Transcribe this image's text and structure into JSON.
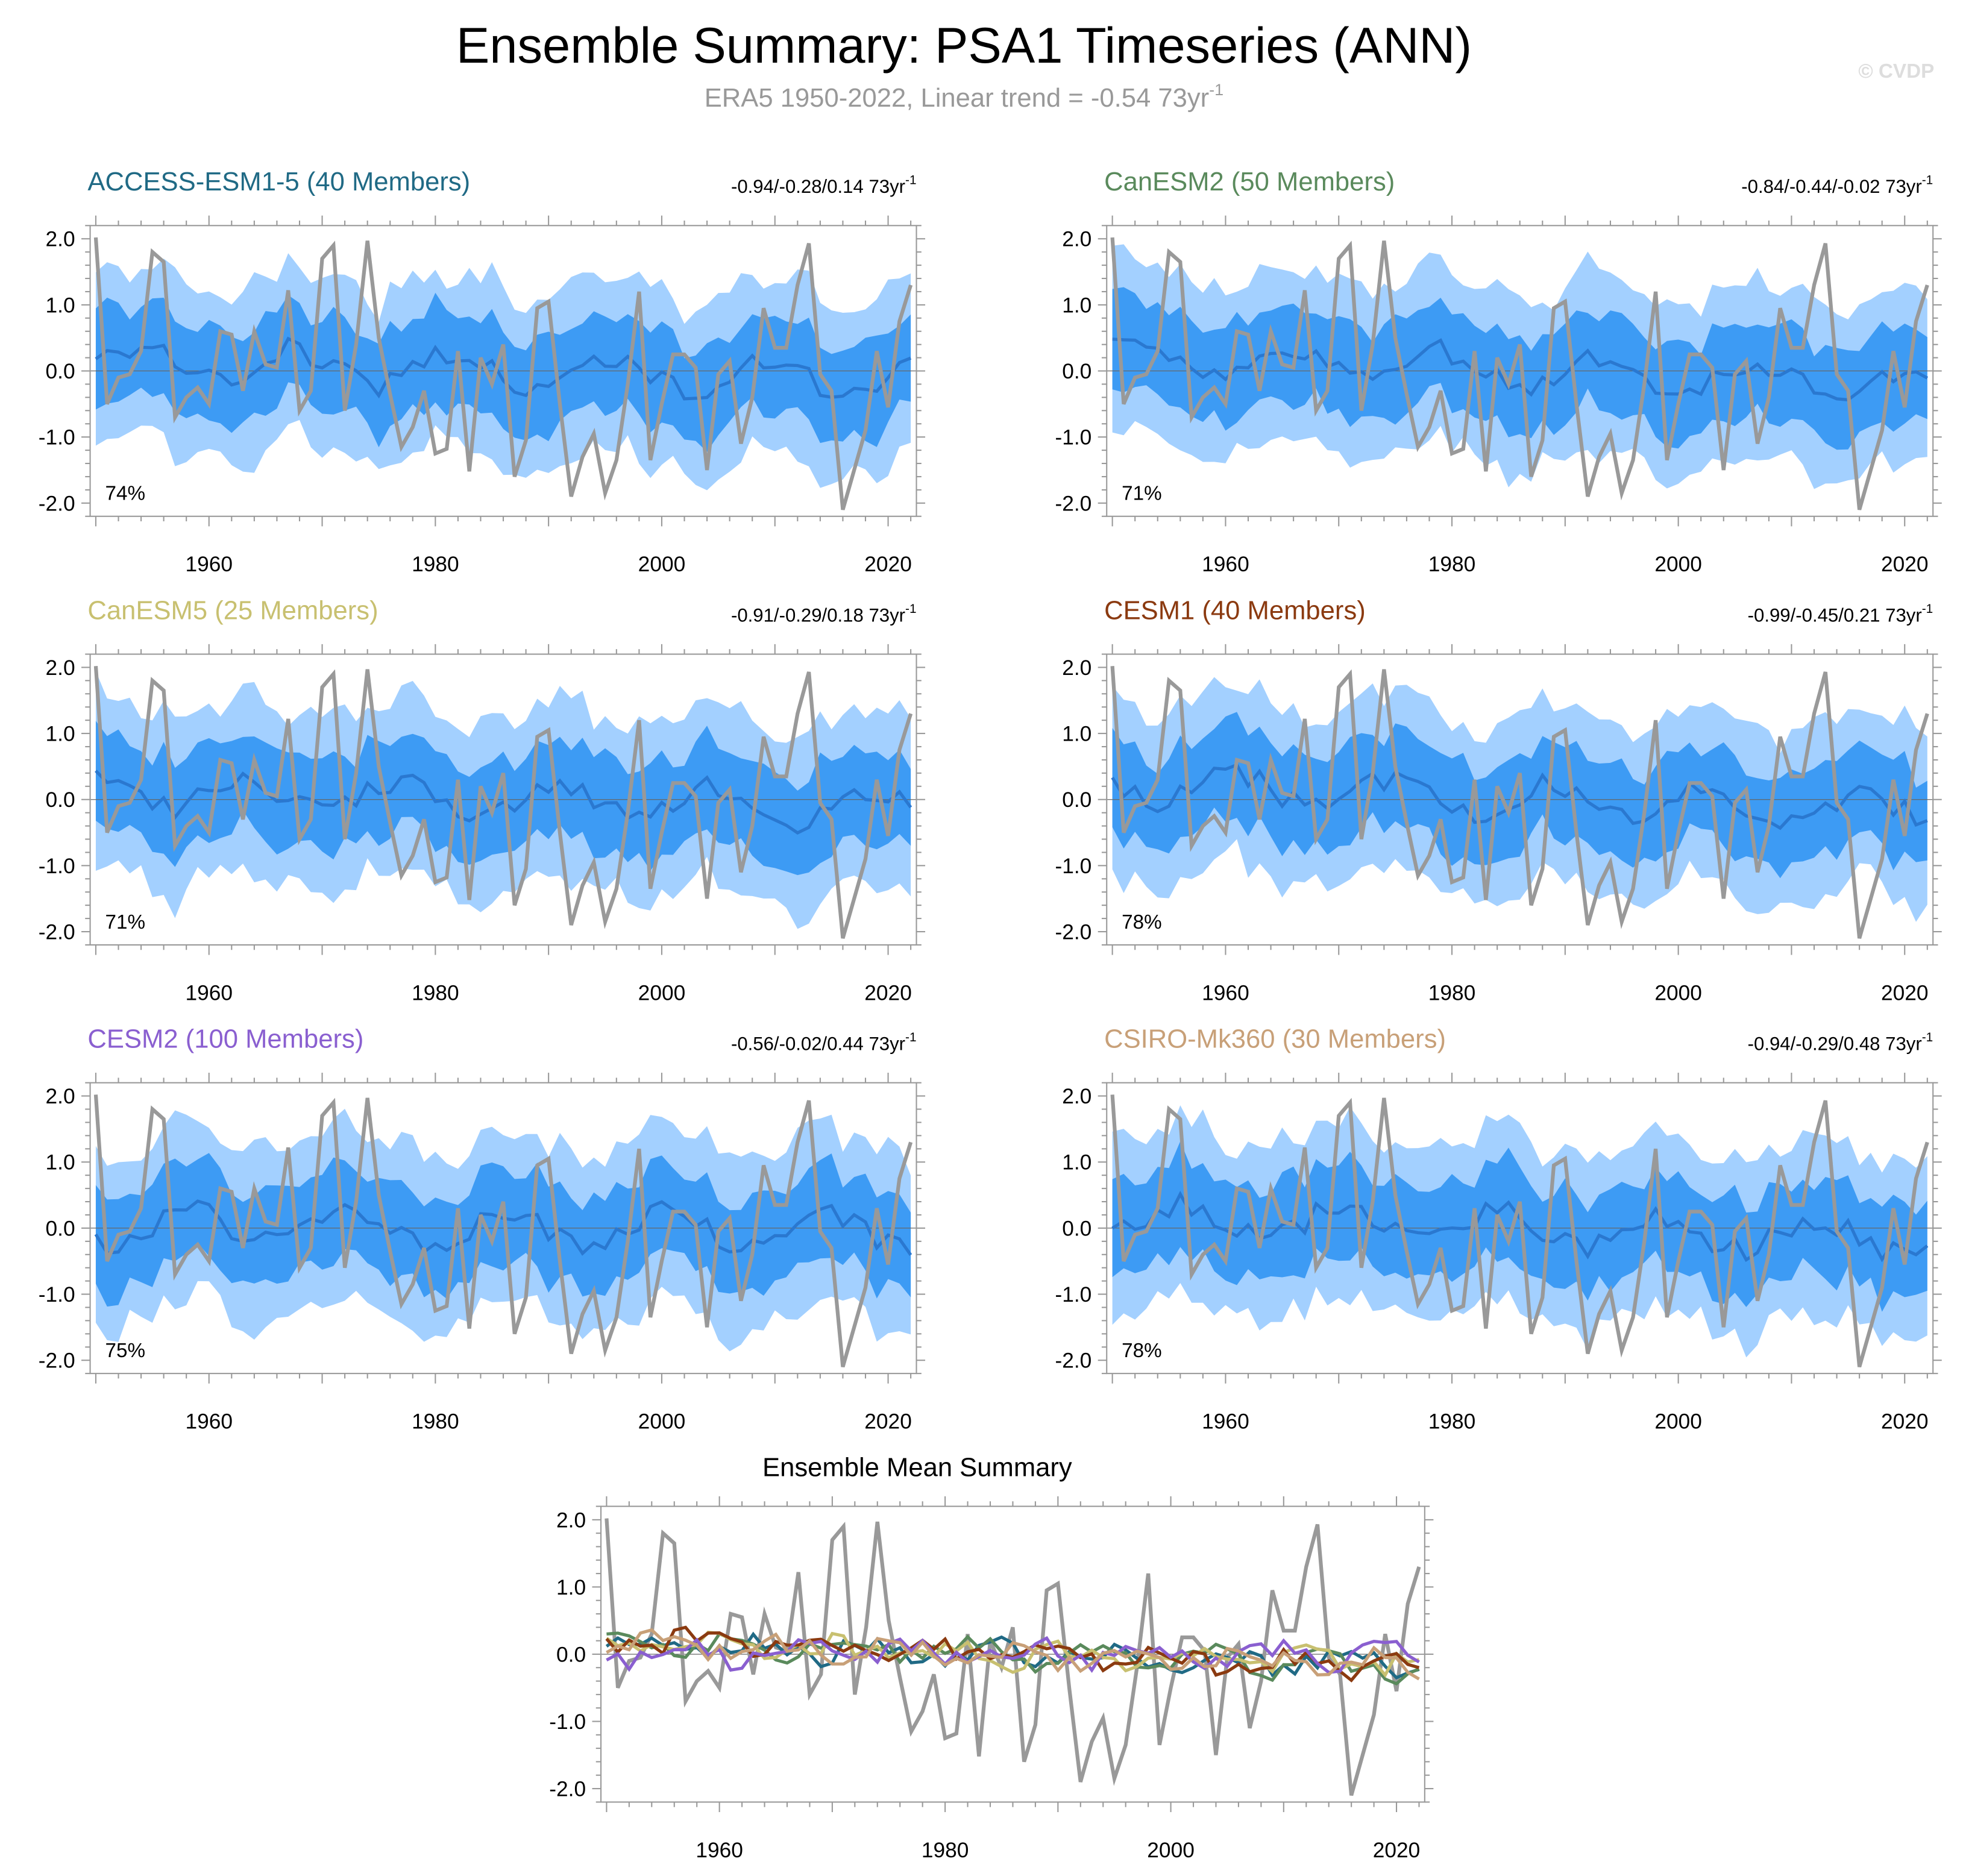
{
  "title": "Ensemble Summary: PSA1 Timeseries (ANN)",
  "subtitle_prefix": "ERA5 1950-2022, Linear trend = -0.54 73yr",
  "subtitle_exp": "-1",
  "watermark": "© CVDP",
  "colors": {
    "band_outer": "#a3d0ff",
    "band_inner": "#3d9bf4",
    "mean_line": "#2a78d0",
    "obs_line": "#999999",
    "zero_line": "#666666",
    "axis": "#999999",
    "title": "#000000",
    "subtitle": "#999999",
    "watermark": "#dddddd"
  },
  "chart_data": [
    {
      "type": "line",
      "id": "ACCESS-ESM1-5",
      "title": "ACCESS-ESM1-5 (40 Members)",
      "title_color": "#206a85",
      "trend_label": "-0.94/-0.28/0.14 73yr",
      "trend_exp": "-1",
      "percent_label": "74%",
      "ylim": [
        -2.2,
        2.2
      ],
      "yticks": [
        -2.0,
        -1.0,
        0.0,
        1.0,
        2.0
      ],
      "ytick_labels": [
        "-2.0",
        "-1.0",
        "0.0",
        "1.0",
        "2.0"
      ],
      "xlim": [
        1949.5,
        2022.5
      ],
      "xticks": [
        1960,
        1980,
        2000,
        2020
      ],
      "xtick_labels": [
        "1960",
        "1980",
        "2000",
        "2020"
      ],
      "x_start": 1950,
      "ensemble_mean_trend": -0.28
    },
    {
      "type": "line",
      "id": "CanESM2",
      "title": "CanESM2 (50 Members)",
      "title_color": "#5a8a5c",
      "trend_label": "-0.84/-0.44/-0.02 73yr",
      "trend_exp": "-1",
      "percent_label": "71%",
      "ylim": [
        -2.2,
        2.2
      ],
      "yticks": [
        -2.0,
        -1.0,
        0.0,
        1.0,
        2.0
      ],
      "ytick_labels": [
        "-2.0",
        "-1.0",
        "0.0",
        "1.0",
        "2.0"
      ],
      "xlim": [
        1949.5,
        2022.5
      ],
      "xticks": [
        1960,
        1980,
        2000,
        2020
      ],
      "xtick_labels": [
        "1960",
        "1980",
        "2000",
        "2020"
      ],
      "x_start": 1950,
      "ensemble_mean_trend": -0.44
    },
    {
      "type": "line",
      "id": "CanESM5",
      "title": "CanESM5 (25 Members)",
      "title_color": "#c8c070",
      "trend_label": "-0.91/-0.29/0.18 73yr",
      "trend_exp": "-1",
      "percent_label": "71%",
      "ylim": [
        -2.2,
        2.2
      ],
      "yticks": [
        -2.0,
        -1.0,
        0.0,
        1.0,
        2.0
      ],
      "ytick_labels": [
        "-2.0",
        "-1.0",
        "0.0",
        "1.0",
        "2.0"
      ],
      "xlim": [
        1949.5,
        2022.5
      ],
      "xticks": [
        1960,
        1980,
        2000,
        2020
      ],
      "xtick_labels": [
        "1960",
        "1980",
        "2000",
        "2020"
      ],
      "x_start": 1950,
      "ensemble_mean_trend": -0.29
    },
    {
      "type": "line",
      "id": "CESM1",
      "title": "CESM1 (40 Members)",
      "title_color": "#8b3a10",
      "trend_label": "-0.99/-0.45/0.21 73yr",
      "trend_exp": "-1",
      "percent_label": "78%",
      "ylim": [
        -2.2,
        2.2
      ],
      "yticks": [
        -2.0,
        -1.0,
        0.0,
        1.0,
        2.0
      ],
      "ytick_labels": [
        "-2.0",
        "-1.0",
        "0.0",
        "1.0",
        "2.0"
      ],
      "xlim": [
        1949.5,
        2022.5
      ],
      "xticks": [
        1960,
        1980,
        2000,
        2020
      ],
      "xtick_labels": [
        "1960",
        "1980",
        "2000",
        "2020"
      ],
      "x_start": 1950,
      "ensemble_mean_trend": -0.45
    },
    {
      "type": "line",
      "id": "CESM2",
      "title": "CESM2 (100 Members)",
      "title_color": "#8a5fd0",
      "trend_label": "-0.56/-0.02/0.44 73yr",
      "trend_exp": "-1",
      "percent_label": "75%",
      "ylim": [
        -2.2,
        2.2
      ],
      "yticks": [
        -2.0,
        -1.0,
        0.0,
        1.0,
        2.0
      ],
      "ytick_labels": [
        "-2.0",
        "-1.0",
        "0.0",
        "1.0",
        "2.0"
      ],
      "xlim": [
        1949.5,
        2022.5
      ],
      "xticks": [
        1960,
        1980,
        2000,
        2020
      ],
      "xtick_labels": [
        "1960",
        "1980",
        "2000",
        "2020"
      ],
      "x_start": 1950,
      "ensemble_mean_trend": -0.02
    },
    {
      "type": "line",
      "id": "CSIRO-Mk360",
      "title": "CSIRO-Mk360 (30 Members)",
      "title_color": "#c8a078",
      "trend_label": "-0.94/-0.29/0.48 73yr",
      "trend_exp": "-1",
      "percent_label": "78%",
      "ylim": [
        -2.2,
        2.2
      ],
      "yticks": [
        -2.0,
        -1.0,
        0.0,
        1.0,
        2.0
      ],
      "ytick_labels": [
        "-2.0",
        "-1.0",
        "0.0",
        "1.0",
        "2.0"
      ],
      "xlim": [
        1949.5,
        2022.5
      ],
      "xticks": [
        1960,
        1980,
        2000,
        2020
      ],
      "xtick_labels": [
        "1960",
        "1980",
        "2000",
        "2020"
      ],
      "x_start": 1950,
      "ensemble_mean_trend": -0.29
    },
    {
      "type": "line",
      "id": "ensemble-mean-summary",
      "title": "Ensemble Mean Summary",
      "title_color": "#000000",
      "ylim": [
        -2.2,
        2.2
      ],
      "yticks": [
        -2.0,
        -1.0,
        0.0,
        1.0,
        2.0
      ],
      "ytick_labels": [
        "-2.0",
        "-1.0",
        "0.0",
        "1.0",
        "2.0"
      ],
      "xlim": [
        1949.5,
        2022.5
      ],
      "xticks": [
        1960,
        1980,
        2000,
        2020
      ],
      "xtick_labels": [
        "1960",
        "1980",
        "2000",
        "2020"
      ],
      "x_start": 1950,
      "series_colors": [
        "#206a85",
        "#5a8a5c",
        "#c8c070",
        "#8b3a10",
        "#8a5fd0",
        "#c8a078"
      ]
    }
  ],
  "observed_series": {
    "name": "ERA5",
    "x_start": 1950,
    "values": [
      2.02,
      -0.5,
      -0.1,
      -0.05,
      0.3,
      1.8,
      1.65,
      -0.7,
      -0.4,
      -0.25,
      -0.5,
      0.6,
      0.55,
      -0.3,
      0.6,
      0.1,
      0.05,
      1.22,
      -0.6,
      -0.3,
      1.7,
      1.9,
      -0.6,
      0.4,
      1.97,
      0.5,
      -0.35,
      -1.15,
      -0.85,
      -0.3,
      -1.25,
      -1.18,
      0.3,
      -1.52,
      0.2,
      -0.2,
      0.4,
      -1.6,
      -1.05,
      0.95,
      1.05,
      -0.5,
      -1.9,
      -1.3,
      -0.95,
      -1.85,
      -1.35,
      -0.2,
      1.2,
      -1.35,
      -0.5,
      0.25,
      0.25,
      0.05,
      -1.5,
      -0.05,
      0.15,
      -1.1,
      -0.4,
      0.95,
      0.35,
      0.35,
      1.3,
      1.93,
      -0.05,
      -0.3,
      -2.1,
      -1.5,
      -0.9,
      0.3,
      -0.55,
      0.75,
      1.3
    ]
  }
}
